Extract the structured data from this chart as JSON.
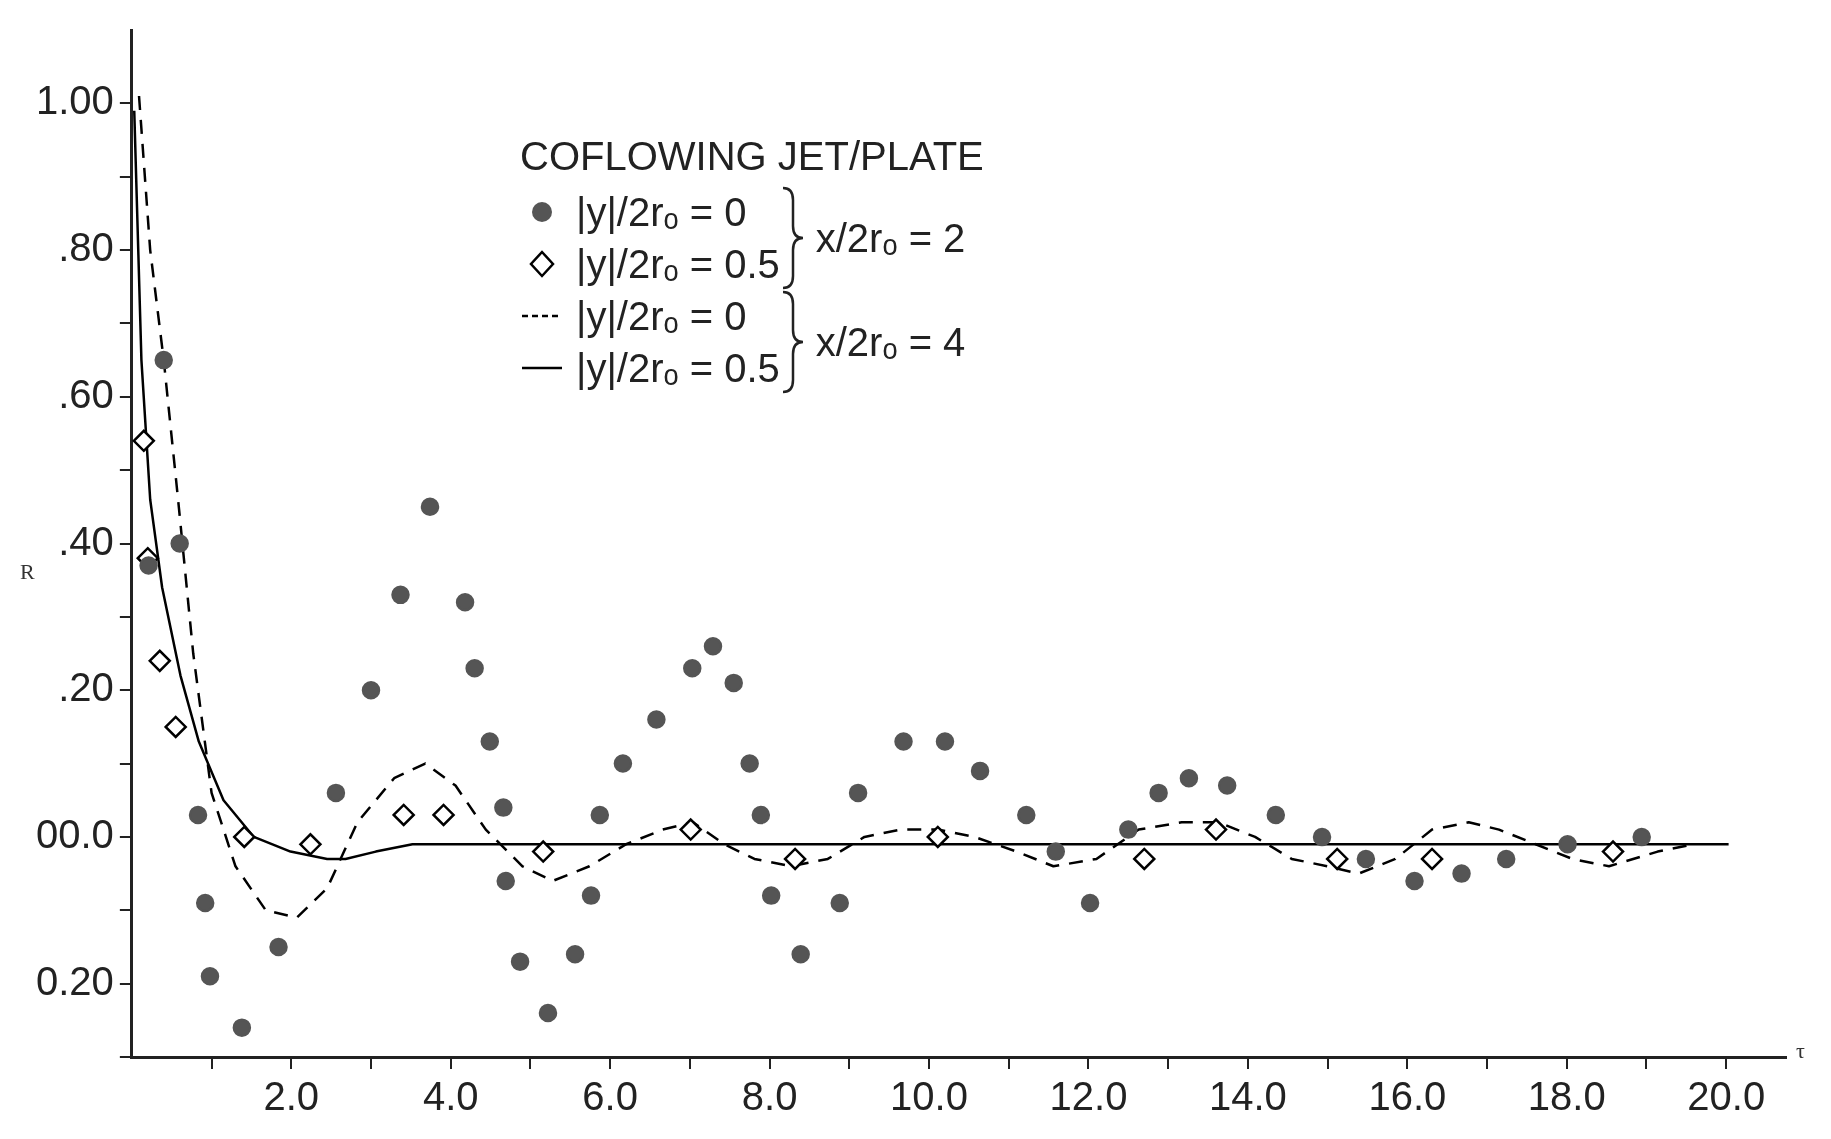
{
  "chart_data": {
    "type": "scatter",
    "xlabel": "τ",
    "ylabel": "R",
    "legend_title": "COFLOWING JET/PLATE",
    "legend": "top",
    "grid": false,
    "annotations": [
      "x/2rₒ = 2",
      "x/2rₒ = 4"
    ],
    "xlim": [
      0,
      20.75
    ],
    "ylim": [
      -0.3,
      1.1
    ],
    "xticks": [
      {
        "value": 1,
        "label": null
      },
      {
        "value": 2,
        "label": "2.0"
      },
      {
        "value": 3,
        "label": null
      },
      {
        "value": 4,
        "label": "4.0"
      },
      {
        "value": 5,
        "label": null
      },
      {
        "value": 6,
        "label": "6.0"
      },
      {
        "value": 7,
        "label": null
      },
      {
        "value": 8,
        "label": "8.0"
      },
      {
        "value": 9,
        "label": null
      },
      {
        "value": 10,
        "label": "10.0"
      },
      {
        "value": 11,
        "label": null
      },
      {
        "value": 12,
        "label": "12.0"
      },
      {
        "value": 13,
        "label": null
      },
      {
        "value": 14,
        "label": "14.0"
      },
      {
        "value": 15,
        "label": null
      },
      {
        "value": 16,
        "label": "16.0"
      },
      {
        "value": 17,
        "label": null
      },
      {
        "value": 18,
        "label": "18.0"
      },
      {
        "value": 19,
        "label": null
      },
      {
        "value": 20,
        "label": "20.0"
      }
    ],
    "yticks": [
      {
        "value": -0.3,
        "label": null
      },
      {
        "value": -0.2,
        "label": "0.20"
      },
      {
        "value": -0.1,
        "label": null
      },
      {
        "value": 0,
        "label": "00.0"
      },
      {
        "value": 0.1,
        "label": null
      },
      {
        "value": 0.2,
        "label": ".20"
      },
      {
        "value": 0.3,
        "label": null
      },
      {
        "value": 0.4,
        "label": ".40"
      },
      {
        "value": 0.5,
        "label": null
      },
      {
        "value": 0.6,
        "label": ".60"
      },
      {
        "value": 0.7,
        "label": null
      },
      {
        "value": 0.8,
        "label": ".80"
      },
      {
        "value": 0.9,
        "label": null
      },
      {
        "value": 1.0,
        "label": "1.00"
      }
    ],
    "series": [
      {
        "name": "|y|/2rₒ = 0",
        "marker": "circle",
        "color": "#555555",
        "x": [
          0.21,
          0.4,
          0.6,
          0.83,
          0.92,
          0.98,
          1.38,
          1.84,
          2.56,
          3.0,
          3.37,
          3.74,
          4.18,
          4.3,
          4.49,
          4.66,
          4.69,
          4.87,
          5.22,
          5.56,
          5.76,
          5.87,
          6.16,
          6.58,
          7.03,
          7.29,
          7.55,
          7.75,
          7.89,
          8.02,
          8.39,
          8.88,
          9.11,
          9.68,
          10.2,
          10.64,
          11.22,
          11.59,
          12.02,
          12.5,
          12.88,
          13.26,
          13.74,
          14.35,
          14.93,
          15.48,
          16.09,
          16.68,
          17.24,
          18.01,
          18.94
        ],
        "values": [
          0.37,
          0.65,
          0.4,
          0.03,
          -0.09,
          -0.19,
          -0.26,
          -0.15,
          0.06,
          0.2,
          0.33,
          0.45,
          0.32,
          0.23,
          0.13,
          0.04,
          -0.06,
          -0.17,
          -0.24,
          -0.16,
          -0.08,
          0.03,
          0.1,
          0.16,
          0.23,
          0.26,
          0.21,
          0.1,
          0.03,
          -0.08,
          -0.16,
          -0.09,
          0.06,
          0.13,
          0.13,
          0.09,
          0.03,
          -0.02,
          -0.09,
          0.01,
          0.06,
          0.08,
          0.07,
          0.03,
          0.0,
          -0.03,
          -0.06,
          -0.05,
          -0.03,
          -0.01,
          0.0
        ]
      },
      {
        "name": "|y|/2rₒ = 0.5",
        "marker": "diamond",
        "color": "#000000",
        "x": [
          0.15,
          0.2,
          0.35,
          0.55,
          1.41,
          2.24,
          3.41,
          3.91,
          5.16,
          7.01,
          8.32,
          10.11,
          12.7,
          13.6,
          15.12,
          16.31,
          18.58
        ],
        "values": [
          0.54,
          0.38,
          0.24,
          0.15,
          0.0,
          -0.01,
          0.03,
          0.03,
          -0.02,
          0.01,
          -0.03,
          0.0,
          -0.03,
          0.01,
          -0.03,
          -0.03,
          -0.02
        ]
      },
      {
        "name": "|y|/2rₒ = 0",
        "type": "line",
        "marker": "none",
        "line_style": "dashed",
        "color": "#000000",
        "x": [
          0.09,
          0.23,
          0.4,
          0.58,
          0.77,
          1.0,
          1.3,
          1.68,
          2.07,
          2.45,
          2.83,
          3.29,
          3.68,
          4.06,
          4.44,
          4.9,
          5.28,
          5.74,
          6.2,
          6.66,
          7.04,
          7.43,
          7.81,
          8.27,
          8.73,
          9.19,
          9.65,
          10.11,
          10.57,
          11.1,
          11.56,
          12.1,
          12.63,
          13.17,
          13.63,
          14.09,
          14.55,
          15.0,
          15.39,
          15.85,
          16.31,
          16.77,
          17.15,
          17.61,
          18.07,
          18.53,
          19.14,
          19.6
        ],
        "values": [
          1.01,
          0.8,
          0.65,
          0.46,
          0.25,
          0.06,
          -0.04,
          -0.1,
          -0.11,
          -0.07,
          0.02,
          0.08,
          0.1,
          0.07,
          0.01,
          -0.04,
          -0.06,
          -0.04,
          -0.01,
          0.01,
          0.02,
          -0.01,
          -0.03,
          -0.04,
          -0.03,
          0.0,
          0.01,
          0.01,
          0.0,
          -0.02,
          -0.04,
          -0.03,
          0.01,
          0.02,
          0.02,
          0.0,
          -0.03,
          -0.04,
          -0.05,
          -0.03,
          0.01,
          0.02,
          0.01,
          -0.01,
          -0.03,
          -0.04,
          -0.02,
          -0.01
        ]
      },
      {
        "name": "|y|/2rₒ = 0.5",
        "type": "line",
        "marker": "none",
        "line_style": "solid",
        "color": "#000000",
        "x": [
          0.03,
          0.12,
          0.23,
          0.38,
          0.61,
          0.84,
          1.15,
          1.53,
          1.99,
          2.45,
          2.68,
          3.06,
          3.52,
          3.98,
          4.59,
          8.0,
          12.0,
          16.0,
          20.03
        ],
        "values": [
          0.99,
          0.65,
          0.46,
          0.34,
          0.22,
          0.13,
          0.05,
          0.0,
          -0.02,
          -0.03,
          -0.03,
          -0.02,
          -0.01,
          -0.01,
          -0.01,
          -0.01,
          -0.01,
          -0.01,
          -0.01
        ]
      }
    ]
  }
}
